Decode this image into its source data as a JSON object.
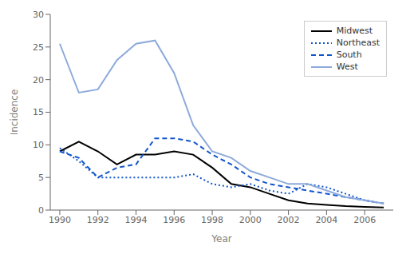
{
  "chart_data": {
    "type": "line",
    "x": [
      1990,
      1991,
      1992,
      1993,
      1994,
      1995,
      1996,
      1997,
      1998,
      1999,
      2000,
      2001,
      2002,
      2003,
      2004,
      2005,
      2006,
      2007
    ],
    "series": [
      {
        "name": "Midwest",
        "color": "#000000",
        "line_style": "solid",
        "values": [
          9.0,
          10.5,
          9.0,
          7.0,
          8.5,
          8.5,
          9.0,
          8.5,
          6.5,
          4.0,
          3.5,
          2.5,
          1.5,
          1.0,
          0.8,
          0.6,
          0.5,
          0.4
        ]
      },
      {
        "name": "Northeast",
        "color": "#1155cc",
        "line_style": "dotted",
        "values": [
          9.5,
          7.5,
          5.0,
          5.0,
          5.0,
          5.0,
          5.0,
          5.5,
          4.0,
          3.5,
          4.0,
          3.0,
          2.5,
          4.0,
          3.5,
          2.5,
          1.5,
          1.0
        ]
      },
      {
        "name": "South",
        "color": "#1155cc",
        "line_style": "dashed",
        "values": [
          9.0,
          8.0,
          5.0,
          6.5,
          7.0,
          11.0,
          11.0,
          10.5,
          8.5,
          7.0,
          5.0,
          4.0,
          3.5,
          3.0,
          2.5,
          2.0,
          1.5,
          1.0
        ]
      },
      {
        "name": "West",
        "color": "#8eaadb",
        "line_style": "solid",
        "values": [
          25.5,
          18.0,
          18.5,
          23.0,
          25.5,
          26.0,
          21.0,
          13.0,
          9.0,
          8.0,
          6.0,
          5.0,
          4.0,
          4.0,
          3.0,
          2.0,
          1.5,
          1.0
        ]
      }
    ],
    "xlabel": "Year",
    "ylabel": "Incidence",
    "xlim": [
      1989.5,
      2007.5
    ],
    "ylim": [
      0,
      30
    ],
    "xticks": [
      1990,
      1992,
      1994,
      1996,
      1998,
      2000,
      2002,
      2004,
      2006
    ],
    "yticks": [
      0,
      5,
      10,
      15,
      20,
      25,
      30
    ],
    "grid": false,
    "legend": "upper right"
  }
}
